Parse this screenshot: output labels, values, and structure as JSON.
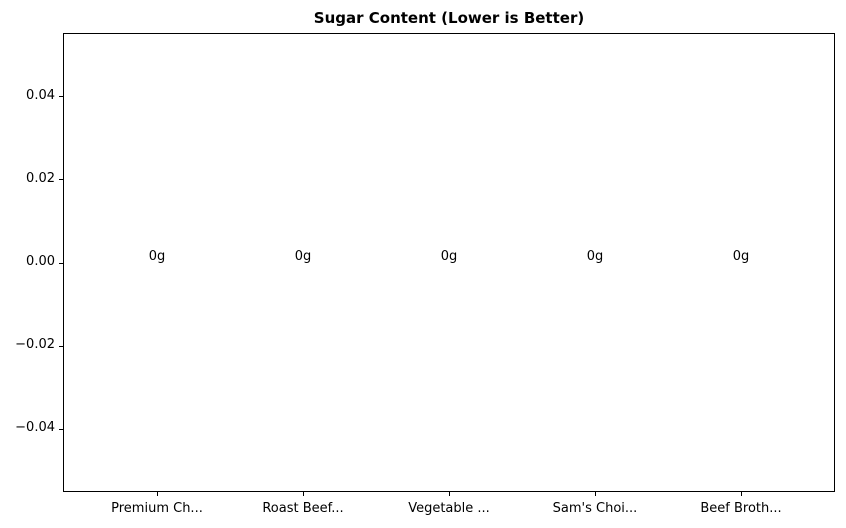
{
  "chart_data": {
    "type": "bar",
    "title": "Sugar Content (Lower is Better)",
    "xlabel": "",
    "ylabel": "",
    "categories": [
      "Premium Ch...",
      "Roast Beef...",
      "Vegetable ...",
      "Sam's Choi...",
      "Beef Broth..."
    ],
    "values": [
      0,
      0,
      0,
      0,
      0
    ],
    "value_labels": [
      "0g",
      "0g",
      "0g",
      "0g",
      "0g"
    ],
    "unit": "g",
    "ylim": [
      -0.0553,
      0.0553
    ],
    "xlim": [
      -0.64,
      4.64
    ],
    "yticks": [
      {
        "value": 0.04,
        "label": "0.04"
      },
      {
        "value": 0.02,
        "label": "0.02"
      },
      {
        "value": 0.0,
        "label": "0.00"
      },
      {
        "value": -0.02,
        "label": "−0.02"
      },
      {
        "value": -0.04,
        "label": "−0.04"
      }
    ],
    "grid": false,
    "legend": null,
    "colors": {
      "text": "#000000",
      "axis": "#000000",
      "background": "#ffffff"
    }
  },
  "layout_note": "all bars have zero height (no visible bars)"
}
